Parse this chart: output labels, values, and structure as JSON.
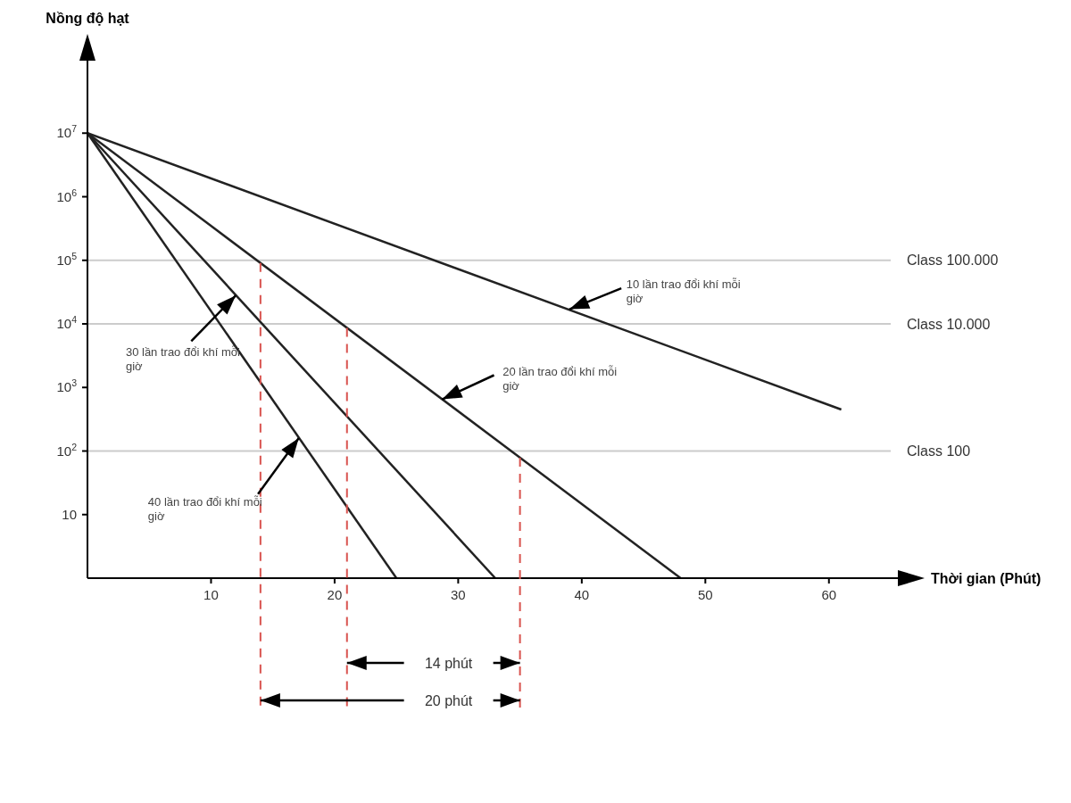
{
  "chart_data": {
    "type": "line",
    "ylabel": "Nồng độ hạt",
    "xlabel": "Thời gian (Phút)",
    "log": "y",
    "xlim": [
      0,
      65
    ],
    "xticks": [
      10,
      20,
      30,
      40,
      50,
      60
    ],
    "ylim": [
      1,
      100000000
    ],
    "yticks": [
      10,
      {
        "value": 100,
        "label": "10$^{2}$"
      },
      {
        "value": 1000,
        "label": "10$^{3}$"
      },
      {
        "value": 10000,
        "label": "10$^{4}$"
      },
      {
        "value": 100000,
        "label": "10$^{5}$"
      },
      {
        "value": 1000000,
        "label": "10$^{6}$"
      },
      {
        "value": 10000000,
        "label": "10$^{7}$"
      }
    ],
    "series": [
      {
        "color": "#222222",
        "x": [
          0,
          61
        ],
        "values": [
          10000000,
          450
        ]
      },
      {
        "color": "#222222",
        "x": [
          0,
          48
        ],
        "values": [
          10000000,
          1
        ]
      },
      {
        "color": "#222222",
        "x": [
          0,
          33
        ],
        "values": [
          10000000,
          1
        ]
      },
      {
        "color": "#222222",
        "x": [
          0,
          25
        ],
        "values": [
          10000000,
          1
        ]
      }
    ],
    "ref_lines": [
      {
        "axis": "y",
        "value": 100000,
        "label": "Class 100.000",
        "color": "#cccccc"
      },
      {
        "axis": "y",
        "value": 10000,
        "label": "Class 10.000",
        "color": "#cccccc"
      },
      {
        "axis": "y",
        "value": 100,
        "label": "Class 100",
        "color": "#cccccc"
      },
      {
        "axis": "x",
        "value": 14,
        "color": "#d9534f",
        "line_style": "dashed"
      },
      {
        "axis": "x",
        "value": 21,
        "color": "#d9534f",
        "line_style": "dashed"
      },
      {
        "axis": "x",
        "value": 35,
        "color": "#d9534f",
        "line_style": "dashed"
      }
    ],
    "annotations": [
      "14 phút",
      "20 phút",
      {
        "text": "10 lần trao đổi khí mỗi giờ",
        "x": 39,
        "y": 17000
      },
      {
        "text": "20 lần trao đổi khí mỗi giờ",
        "x": 28.7,
        "y": 650
      },
      {
        "text": "30 lần trao đổi khí mỗi giờ",
        "x": 12,
        "y": 28000
      },
      {
        "text": "40 lần trao đổi khí mỗi giờ",
        "x": 17.1,
        "y": 160
      }
    ]
  }
}
